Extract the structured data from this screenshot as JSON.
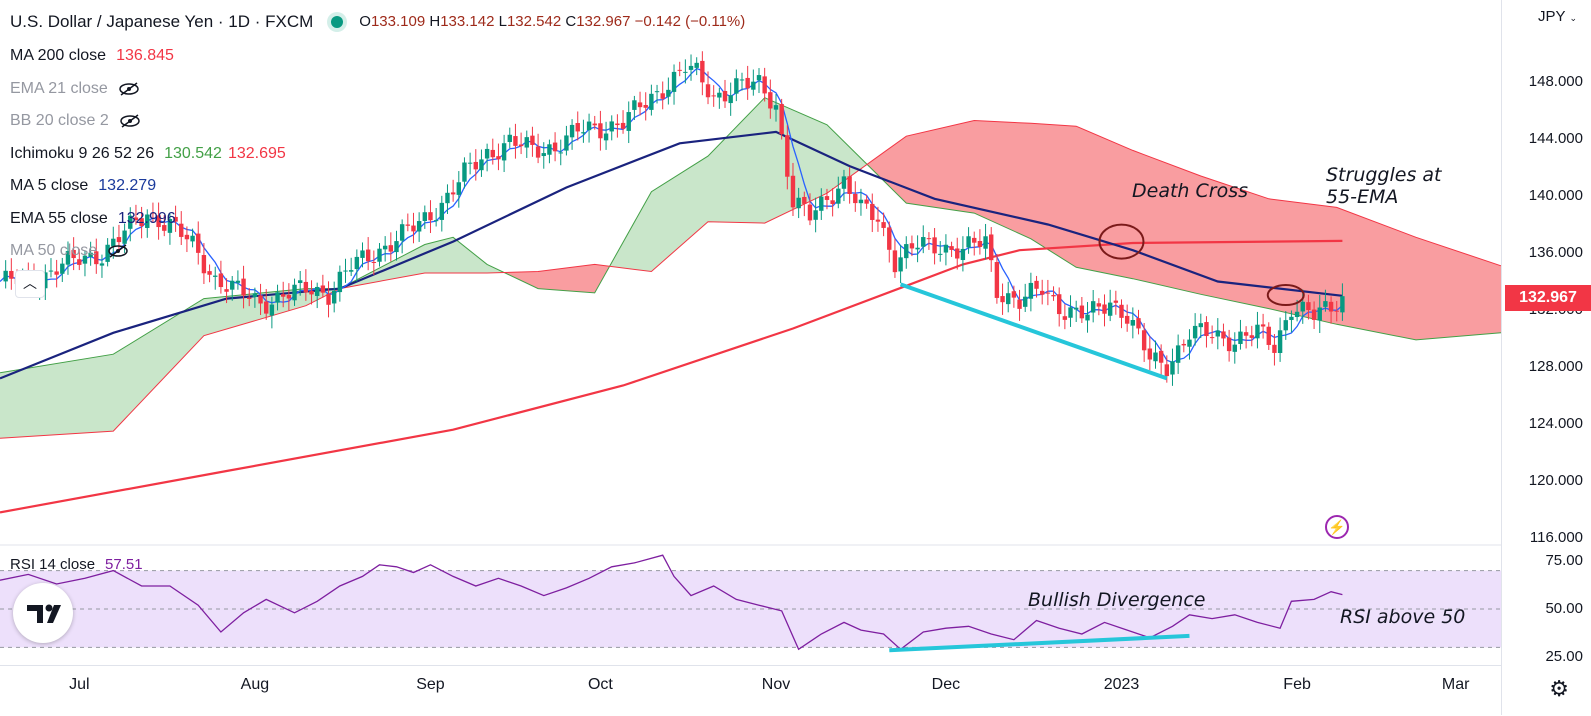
{
  "header": {
    "symbol": "U.S. Dollar / Japanese Yen · 1D · FXCM",
    "ohlc": {
      "o_label": "O",
      "o": "133.109",
      "h_label": "H",
      "h": "133.142",
      "l_label": "L",
      "l": "132.542",
      "c_label": "C",
      "c": "132.967",
      "change": "−0.142 (−0.11%)"
    }
  },
  "legend": {
    "ma200": {
      "label": "MA 200 close",
      "value": "136.845"
    },
    "ema21": {
      "label": "EMA 21 close"
    },
    "bb20": {
      "label": "BB 20 close 2"
    },
    "ichimoku": {
      "label": "Ichimoku 9 26 52 26",
      "v1": "130.542",
      "v2": "132.695"
    },
    "ma5": {
      "label": "MA 5 close",
      "value": "132.279"
    },
    "ema55": {
      "label": "EMA 55 close",
      "value": "132.996"
    },
    "ma50": {
      "label": "MA 50 close"
    }
  },
  "rsi_legend": {
    "label": "RSI 14 close",
    "value": "57.51"
  },
  "currency": "JPY",
  "last_price": "132.967",
  "annotations": {
    "death_cross": "Death Cross",
    "struggles_line1": "Struggles at",
    "struggles_line2": "55-EMA",
    "bullish_divergence": "Bullish Divergence",
    "rsi_above": "RSI above 50"
  },
  "colors": {
    "up": "#089981",
    "down": "#f23645",
    "ma200": "#f23645",
    "ema55": "#1a237e",
    "ma5": "#2962ff",
    "cloud_green": "#a5d6a7",
    "cloud_red": "#f77c80",
    "rsi": "#7e1fa0",
    "rsi_band": "#ede0fb",
    "trend": "#26c6da"
  },
  "chart_data": [
    {
      "type": "candlestick",
      "title": "U.S. Dollar / Japanese Yen · 1D · FXCM",
      "price_ticks": [
        "148.000",
        "144.000",
        "140.000",
        "136.000",
        "132.000",
        "128.000",
        "124.000",
        "120.000",
        "116.000"
      ],
      "price_tick_values": [
        148,
        144,
        140,
        136,
        132,
        128,
        124,
        120,
        116
      ],
      "ylim": [
        116,
        150
      ],
      "time_ticks": [
        "Jul",
        "Aug",
        "Sep",
        "Oct",
        "Nov",
        "Dec",
        "2023",
        "Feb",
        "Mar"
      ],
      "x_range_days": [
        0,
        265
      ],
      "time_tick_days": [
        14,
        45,
        76,
        106,
        137,
        167,
        198,
        229,
        257
      ],
      "close_points": [
        [
          0,
          134
        ],
        [
          6,
          134
        ],
        [
          10,
          135
        ],
        [
          14,
          135.5
        ],
        [
          18,
          136
        ],
        [
          22,
          137.4
        ],
        [
          26,
          138.8
        ],
        [
          30,
          138
        ],
        [
          34,
          136.5
        ],
        [
          38,
          134.2
        ],
        [
          42,
          133.3
        ],
        [
          46,
          132.5
        ],
        [
          50,
          133
        ],
        [
          55,
          133.5
        ],
        [
          58,
          133.2
        ],
        [
          62,
          135
        ],
        [
          66,
          136
        ],
        [
          70,
          137
        ],
        [
          74,
          138
        ],
        [
          78,
          139.5
        ],
        [
          82,
          141.5
        ],
        [
          86,
          143
        ],
        [
          90,
          143.8
        ],
        [
          94,
          143.2
        ],
        [
          98,
          143.5
        ],
        [
          102,
          144.5
        ],
        [
          106,
          144.8
        ],
        [
          110,
          145.2
        ],
        [
          114,
          146.5
        ],
        [
          118,
          148
        ],
        [
          121,
          149
        ],
        [
          123,
          148.5
        ],
        [
          126,
          147
        ],
        [
          130,
          147.7
        ],
        [
          134,
          147.8
        ],
        [
          137,
          146.5
        ],
        [
          140,
          139.5
        ],
        [
          143,
          138.5
        ],
        [
          146,
          140
        ],
        [
          149,
          141
        ],
        [
          152,
          139
        ],
        [
          155,
          138.5
        ],
        [
          158,
          135.5
        ],
        [
          162,
          136.5
        ],
        [
          166,
          136.5
        ],
        [
          170,
          136.2
        ],
        [
          174,
          136.8
        ],
        [
          176,
          133.5
        ],
        [
          180,
          132.5
        ],
        [
          184,
          133.5
        ],
        [
          188,
          132
        ],
        [
          192,
          131.5
        ],
        [
          196,
          132.7
        ],
        [
          199,
          131.6
        ],
        [
          203,
          128.5
        ],
        [
          206,
          128.2
        ],
        [
          210,
          130.3
        ],
        [
          214,
          130.3
        ],
        [
          218,
          129.9
        ],
        [
          222,
          130.4
        ],
        [
          225,
          129.5
        ],
        [
          228,
          132.3
        ],
        [
          232,
          131.5
        ],
        [
          235,
          132.3
        ],
        [
          237,
          132.97
        ]
      ],
      "close_label": "132.967",
      "ma200": {
        "name": "MA 200 close",
        "points": [
          [
            0,
            117.8
          ],
          [
            40,
            120.7
          ],
          [
            80,
            123.6
          ],
          [
            110,
            126.7
          ],
          [
            140,
            130.7
          ],
          [
            160,
            133.7
          ],
          [
            170,
            135.2
          ],
          [
            180,
            136.2
          ],
          [
            200,
            136.7
          ],
          [
            237,
            136.85
          ]
        ]
      },
      "ema55": {
        "name": "EMA 55 close",
        "points": [
          [
            0,
            127.2
          ],
          [
            20,
            130.4
          ],
          [
            40,
            132.8
          ],
          [
            60,
            133.5
          ],
          [
            80,
            136.8
          ],
          [
            100,
            140.6
          ],
          [
            120,
            143.7
          ],
          [
            137,
            144.5
          ],
          [
            150,
            142.1
          ],
          [
            165,
            139.8
          ],
          [
            185,
            138
          ],
          [
            200,
            136.2
          ],
          [
            215,
            134
          ],
          [
            237,
            133
          ]
        ]
      },
      "cloud": {
        "span_a": [
          [
            0,
            127.6
          ],
          [
            20,
            128.9
          ],
          [
            36,
            132.8
          ],
          [
            54,
            133.5
          ],
          [
            60,
            133.5
          ],
          [
            75,
            136.6
          ],
          [
            80,
            137.1
          ],
          [
            86,
            135.2
          ],
          [
            95,
            133.5
          ],
          [
            105,
            133.2
          ],
          [
            115,
            140.3
          ],
          [
            125,
            142.8
          ],
          [
            135,
            146.9
          ],
          [
            146,
            145
          ],
          [
            160,
            139.5
          ],
          [
            172,
            138.8
          ],
          [
            182,
            137
          ],
          [
            190,
            135
          ],
          [
            200,
            134.2
          ],
          [
            212,
            133.1
          ],
          [
            224,
            132.1
          ],
          [
            236,
            131
          ],
          [
            250,
            129.9
          ],
          [
            265,
            130.4
          ]
        ],
        "span_b": [
          [
            0,
            123
          ],
          [
            20,
            123.5
          ],
          [
            36,
            130.2
          ],
          [
            54,
            132.3
          ],
          [
            60,
            133.5
          ],
          [
            75,
            134.6
          ],
          [
            80,
            134.6
          ],
          [
            86,
            134.6
          ],
          [
            95,
            134.7
          ],
          [
            105,
            135.2
          ],
          [
            115,
            134.7
          ],
          [
            125,
            138.2
          ],
          [
            135,
            138.1
          ],
          [
            146,
            140.2
          ],
          [
            160,
            144.2
          ],
          [
            172,
            145.3
          ],
          [
            182,
            145.1
          ],
          [
            190,
            144.9
          ],
          [
            200,
            143.2
          ],
          [
            212,
            141.4
          ],
          [
            224,
            139.8
          ],
          [
            236,
            139.2
          ],
          [
            250,
            137.1
          ],
          [
            265,
            135.1
          ]
        ]
      }
    },
    {
      "type": "line",
      "title": "RSI 14 close",
      "y_ticks": [
        "75.00",
        "50.00",
        "25.00"
      ],
      "y_tick_values": [
        75,
        50,
        25
      ],
      "ylim": [
        20,
        82
      ],
      "band": [
        30,
        70
      ],
      "series": [
        {
          "name": "RSI 14 close",
          "points": [
            [
              0,
              65
            ],
            [
              5,
              68
            ],
            [
              10,
              63
            ],
            [
              15,
              66
            ],
            [
              20,
              70
            ],
            [
              25,
              62
            ],
            [
              30,
              62
            ],
            [
              35,
              52
            ],
            [
              39,
              38
            ],
            [
              43,
              48
            ],
            [
              47,
              55
            ],
            [
              52,
              48
            ],
            [
              56,
              54
            ],
            [
              60,
              62
            ],
            [
              64,
              67
            ],
            [
              67,
              73
            ],
            [
              70,
              72
            ],
            [
              73,
              69
            ],
            [
              76,
              73
            ],
            [
              80,
              67
            ],
            [
              84,
              62
            ],
            [
              88,
              66
            ],
            [
              92,
              62
            ],
            [
              96,
              57
            ],
            [
              100,
              61
            ],
            [
              104,
              66
            ],
            [
              108,
              72
            ],
            [
              112,
              74
            ],
            [
              117,
              78
            ],
            [
              119,
              67
            ],
            [
              122,
              57
            ],
            [
              126,
              62
            ],
            [
              130,
              55
            ],
            [
              134,
              52
            ],
            [
              138,
              49
            ],
            [
              141,
              29
            ],
            [
              145,
              37
            ],
            [
              149,
              43
            ],
            [
              152,
              39
            ],
            [
              156,
              37
            ],
            [
              159,
              29
            ],
            [
              163,
              38
            ],
            [
              167,
              40
            ],
            [
              171,
              41
            ],
            [
              175,
              37
            ],
            [
              179,
              34
            ],
            [
              183,
              44
            ],
            [
              187,
              40
            ],
            [
              191,
              37
            ],
            [
              195,
              43
            ],
            [
              199,
              39
            ],
            [
              203,
              35
            ],
            [
              207,
              41
            ],
            [
              210,
              47
            ],
            [
              214,
              45
            ],
            [
              218,
              47
            ],
            [
              222,
              43
            ],
            [
              226,
              40
            ],
            [
              228,
              54
            ],
            [
              232,
              55
            ],
            [
              235,
              59
            ],
            [
              237,
              57.5
            ]
          ]
        }
      ]
    }
  ]
}
